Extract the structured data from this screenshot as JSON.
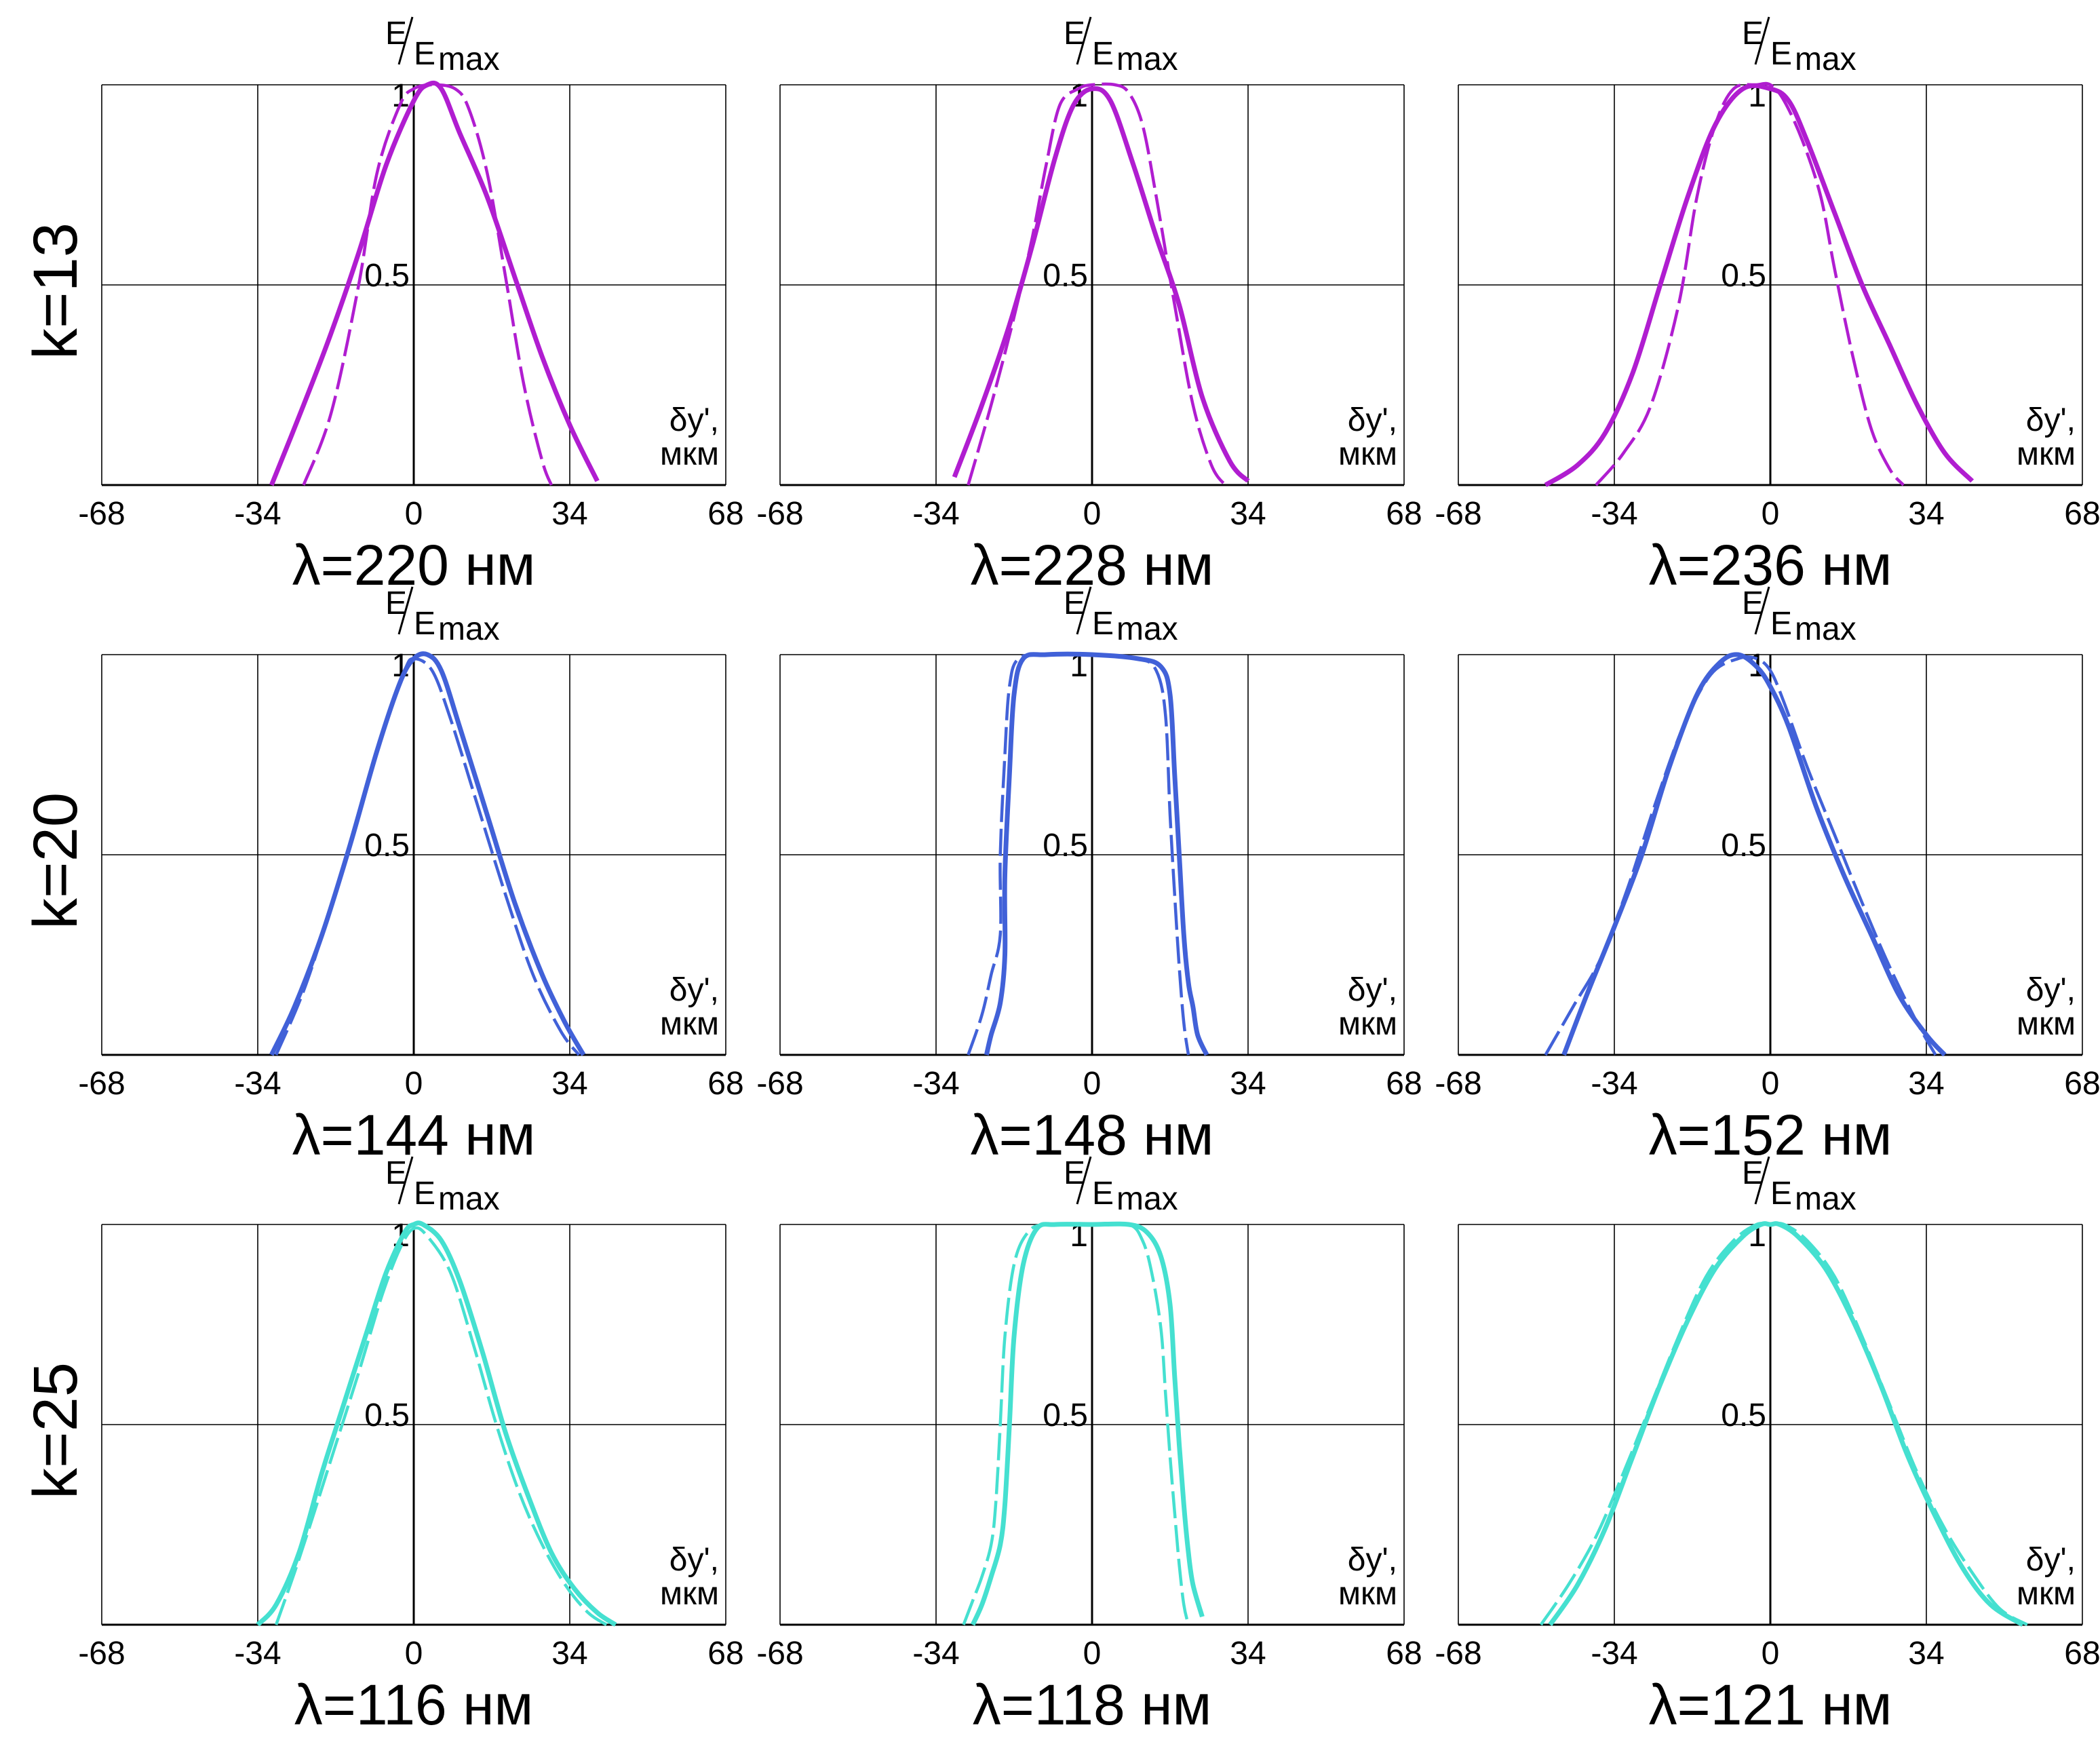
{
  "row_labels": [
    "k=13",
    "k=20",
    "k=25"
  ],
  "axis_text": {
    "y_label_num": "E",
    "y_label_den": "E",
    "y_label_sub": "max",
    "x_label_line1": "δy',",
    "x_label_line2": "мкм"
  },
  "colors": {
    "k13": "#b01dd0",
    "k20": "#4161d8",
    "k25": "#45e0d0",
    "grid": "#000000"
  },
  "chart_data": [
    {
      "type": "line",
      "row": "k=13",
      "title": "λ=220 нм",
      "xlim": [
        -68,
        68
      ],
      "ylim": [
        0,
        1
      ],
      "xticks": [
        "-68",
        "-34",
        "0",
        "34",
        "68"
      ],
      "yticks": [
        "0.5",
        "1"
      ],
      "xlabel": "δy', мкм",
      "ylabel": "E/E max",
      "series": [
        {
          "name": "solid",
          "style": "solid",
          "color": "#b01dd0",
          "x": [
            -31,
            -24,
            -18,
            -12,
            -6,
            0,
            3,
            6,
            10,
            16,
            22,
            28,
            34,
            40
          ],
          "y": [
            0,
            0.2,
            0.38,
            0.58,
            0.8,
            0.96,
            1.0,
            0.99,
            0.88,
            0.72,
            0.52,
            0.32,
            0.15,
            0.01
          ]
        },
        {
          "name": "dashed",
          "style": "dashed",
          "color": "#b01dd0",
          "x": [
            -24,
            -18,
            -12,
            -8,
            -3,
            0,
            4,
            9,
            12,
            16,
            20,
            24,
            28,
            30
          ],
          "y": [
            0,
            0.18,
            0.5,
            0.78,
            0.95,
            0.99,
            1.0,
            0.99,
            0.94,
            0.78,
            0.52,
            0.25,
            0.06,
            0
          ]
        }
      ]
    },
    {
      "type": "line",
      "row": "k=13",
      "title": "λ=228 нм",
      "xlim": [
        -68,
        68
      ],
      "ylim": [
        0,
        1
      ],
      "xticks": [
        "-68",
        "-34",
        "0",
        "34",
        "68"
      ],
      "yticks": [
        "0.5",
        "1"
      ],
      "xlabel": "δy', мкм",
      "ylabel": "E/E max",
      "series": [
        {
          "name": "solid",
          "style": "solid",
          "color": "#b01dd0",
          "x": [
            -30,
            -24,
            -18,
            -13,
            -8,
            -4,
            0,
            4,
            9,
            14,
            19,
            24,
            30,
            34
          ],
          "y": [
            0.02,
            0.2,
            0.4,
            0.6,
            0.82,
            0.95,
            0.99,
            0.96,
            0.8,
            0.62,
            0.45,
            0.22,
            0.06,
            0.01
          ]
        },
        {
          "name": "dashed",
          "style": "dashed",
          "color": "#b01dd0",
          "x": [
            -27,
            -22,
            -17,
            -13,
            -10,
            -7,
            -3,
            0,
            5,
            8,
            11,
            14,
            18,
            22,
            26,
            29
          ],
          "y": [
            0,
            0.2,
            0.42,
            0.62,
            0.8,
            0.95,
            0.99,
            1.0,
            1.0,
            0.98,
            0.9,
            0.72,
            0.45,
            0.2,
            0.05,
            0
          ]
        }
      ]
    },
    {
      "type": "line",
      "row": "k=13",
      "title": "λ=236 нм",
      "xlim": [
        -68,
        68
      ],
      "ylim": [
        0,
        1
      ],
      "xticks": [
        "-68",
        "-34",
        "0",
        "34",
        "68"
      ],
      "yticks": [
        "0.5",
        "1"
      ],
      "xlabel": "δy', мкм",
      "ylabel": "E/E max",
      "series": [
        {
          "name": "solid",
          "style": "solid",
          "color": "#b01dd0",
          "x": [
            -49,
            -42,
            -36,
            -30,
            -24,
            -18,
            -12,
            -6,
            0,
            4,
            8,
            14,
            20,
            26,
            32,
            38,
            44
          ],
          "y": [
            0,
            0.05,
            0.13,
            0.28,
            0.5,
            0.72,
            0.9,
            0.99,
            0.99,
            0.96,
            0.86,
            0.68,
            0.5,
            0.35,
            0.2,
            0.08,
            0.01
          ]
        },
        {
          "name": "dashed",
          "style": "dashed",
          "color": "#b01dd0",
          "x": [
            -38,
            -32,
            -26,
            -20,
            -16,
            -12,
            -8,
            -3,
            0,
            3,
            7,
            11,
            14,
            18,
            22,
            26,
            29
          ],
          "y": [
            0,
            0.08,
            0.2,
            0.45,
            0.72,
            0.9,
            0.99,
            1.0,
            1.0,
            0.96,
            0.86,
            0.72,
            0.54,
            0.32,
            0.14,
            0.04,
            0
          ]
        }
      ]
    },
    {
      "type": "line",
      "row": "k=20",
      "title": "λ=144 нм",
      "xlim": [
        -68,
        68
      ],
      "ylim": [
        0,
        1
      ],
      "xticks": [
        "-68",
        "-34",
        "0",
        "34",
        "68"
      ],
      "yticks": [
        "0.5",
        "1"
      ],
      "xlabel": "δy', мкм",
      "ylabel": "E/E max",
      "series": [
        {
          "name": "solid",
          "style": "solid",
          "color": "#4161d8",
          "x": [
            -31,
            -26,
            -20,
            -14,
            -8,
            -3,
            0,
            3,
            6,
            10,
            16,
            22,
            28,
            33,
            37
          ],
          "y": [
            0,
            0.12,
            0.3,
            0.52,
            0.76,
            0.93,
            0.99,
            1.0,
            0.96,
            0.82,
            0.6,
            0.38,
            0.2,
            0.08,
            0
          ]
        },
        {
          "name": "dashed",
          "style": "dashed",
          "color": "#4161d8",
          "x": [
            -30,
            -24,
            -18,
            -12,
            -6,
            -2,
            0,
            4,
            8,
            14,
            20,
            26,
            32,
            36
          ],
          "y": [
            0,
            0.16,
            0.37,
            0.6,
            0.83,
            0.96,
            0.99,
            0.96,
            0.84,
            0.62,
            0.4,
            0.2,
            0.06,
            0
          ]
        }
      ]
    },
    {
      "type": "line",
      "row": "k=20",
      "title": "λ=148 нм",
      "xlim": [
        -68,
        68
      ],
      "ylim": [
        0,
        1
      ],
      "xticks": [
        "-68",
        "-34",
        "0",
        "34",
        "68"
      ],
      "yticks": [
        "0.5",
        "1"
      ],
      "xlabel": "δy', мкм",
      "ylabel": "E/E max",
      "series": [
        {
          "name": "solid",
          "style": "solid",
          "color": "#4161d8",
          "x": [
            -23,
            -22,
            -20,
            -19,
            -19,
            -18,
            -17,
            -15,
            -10,
            0,
            10,
            15,
            17,
            18,
            19,
            20,
            21,
            22,
            23,
            25
          ],
          "y": [
            0,
            0.05,
            0.13,
            0.25,
            0.45,
            0.7,
            0.9,
            0.99,
            1.0,
            1.0,
            0.99,
            0.97,
            0.9,
            0.7,
            0.5,
            0.3,
            0.18,
            0.12,
            0.05,
            0
          ]
        },
        {
          "name": "dashed",
          "style": "dashed",
          "color": "#4161d8",
          "x": [
            -27,
            -24,
            -22,
            -20,
            -20,
            -19,
            -18,
            -16,
            -10,
            0,
            10,
            14,
            16,
            17,
            18,
            19,
            20,
            21
          ],
          "y": [
            0,
            0.1,
            0.2,
            0.3,
            0.5,
            0.75,
            0.92,
            0.99,
            1.0,
            1.0,
            0.99,
            0.96,
            0.85,
            0.6,
            0.4,
            0.22,
            0.08,
            0
          ]
        }
      ]
    },
    {
      "type": "line",
      "row": "k=20",
      "title": "λ=152 нм",
      "xlim": [
        -68,
        68
      ],
      "ylim": [
        0,
        1
      ],
      "xticks": [
        "-68",
        "-34",
        "0",
        "34",
        "68"
      ],
      "yticks": [
        "0.5",
        "1"
      ],
      "xlabel": "δy', мкм",
      "ylabel": "E/E max",
      "series": [
        {
          "name": "solid",
          "style": "solid",
          "color": "#4161d8",
          "x": [
            -45,
            -40,
            -34,
            -28,
            -22,
            -16,
            -11,
            -7,
            -3,
            0,
            4,
            10,
            16,
            22,
            28,
            34,
            38
          ],
          "y": [
            0,
            0.15,
            0.32,
            0.5,
            0.72,
            0.9,
            0.98,
            1.0,
            0.97,
            0.92,
            0.82,
            0.62,
            0.45,
            0.3,
            0.15,
            0.05,
            0
          ]
        },
        {
          "name": "dashed",
          "style": "dashed",
          "color": "#4161d8",
          "x": [
            -49,
            -43,
            -37,
            -31,
            -25,
            -19,
            -13,
            -7,
            -3,
            0,
            3,
            8,
            14,
            20,
            26,
            32,
            36
          ],
          "y": [
            0,
            0.12,
            0.24,
            0.42,
            0.63,
            0.82,
            0.95,
            0.99,
            0.99,
            0.96,
            0.88,
            0.72,
            0.55,
            0.38,
            0.22,
            0.08,
            0
          ]
        }
      ]
    },
    {
      "type": "line",
      "row": "k=25",
      "title": "λ=116 нм",
      "xlim": [
        -68,
        68
      ],
      "ylim": [
        0,
        1
      ],
      "xticks": [
        "-68",
        "-34",
        "0",
        "34",
        "68"
      ],
      "yticks": [
        "0.5",
        "1"
      ],
      "xlabel": "δy', мкм",
      "ylabel": "E/E max",
      "series": [
        {
          "name": "solid",
          "style": "solid",
          "color": "#45e0d0",
          "x": [
            -34,
            -30,
            -25,
            -20,
            -15,
            -10,
            -6,
            -2,
            0,
            2,
            6,
            10,
            15,
            20,
            25,
            30,
            35,
            40,
            44
          ],
          "y": [
            0,
            0.05,
            0.18,
            0.38,
            0.56,
            0.74,
            0.88,
            0.98,
            1.0,
            1.0,
            0.96,
            0.86,
            0.68,
            0.48,
            0.32,
            0.18,
            0.09,
            0.03,
            0
          ]
        },
        {
          "name": "dashed",
          "style": "dashed",
          "color": "#45e0d0",
          "x": [
            -30,
            -26,
            -22,
            -17,
            -12,
            -7,
            -3,
            0,
            3,
            8,
            13,
            18,
            23,
            28,
            33,
            38,
            42
          ],
          "y": [
            0,
            0.13,
            0.27,
            0.45,
            0.63,
            0.82,
            0.94,
            0.99,
            0.97,
            0.88,
            0.7,
            0.5,
            0.33,
            0.2,
            0.1,
            0.03,
            0
          ]
        }
      ]
    },
    {
      "type": "line",
      "row": "k=25",
      "title": "λ=118 нм",
      "xlim": [
        -68,
        68
      ],
      "ylim": [
        0,
        1
      ],
      "xticks": [
        "-68",
        "-34",
        "0",
        "34",
        "68"
      ],
      "yticks": [
        "0.5",
        "1"
      ],
      "xlabel": "δy', мкм",
      "ylabel": "E/E max",
      "series": [
        {
          "name": "solid",
          "style": "solid",
          "color": "#45e0d0",
          "x": [
            -26,
            -24,
            -22,
            -20,
            -19,
            -18,
            -17,
            -15,
            -12,
            -8,
            0,
            8,
            12,
            15,
            17,
            18,
            19,
            20,
            21,
            22,
            24
          ],
          "y": [
            0,
            0.05,
            0.12,
            0.2,
            0.3,
            0.5,
            0.72,
            0.9,
            0.99,
            1.0,
            1.0,
            1.0,
            0.98,
            0.92,
            0.8,
            0.62,
            0.45,
            0.3,
            0.18,
            0.1,
            0.02
          ]
        },
        {
          "name": "dashed",
          "style": "dashed",
          "color": "#45e0d0",
          "x": [
            -28,
            -26,
            -24,
            -22,
            -21,
            -20,
            -19,
            -17,
            -14,
            -10,
            0,
            8,
            11,
            13,
            15,
            16,
            17,
            18,
            19,
            20,
            21
          ],
          "y": [
            0,
            0.06,
            0.12,
            0.2,
            0.3,
            0.5,
            0.72,
            0.9,
            0.98,
            1.0,
            1.0,
            1.0,
            0.96,
            0.88,
            0.74,
            0.58,
            0.42,
            0.28,
            0.15,
            0.05,
            0
          ]
        }
      ]
    },
    {
      "type": "line",
      "row": "k=25",
      "title": "λ=121 нм",
      "xlim": [
        -68,
        68
      ],
      "ylim": [
        0,
        1
      ],
      "xticks": [
        "-68",
        "-34",
        "0",
        "34",
        "68"
      ],
      "yticks": [
        "0.5",
        "1"
      ],
      "xlabel": "δy', мкм",
      "ylabel": "E/E max",
      "series": [
        {
          "name": "solid",
          "style": "solid",
          "color": "#45e0d0",
          "x": [
            -48,
            -42,
            -36,
            -30,
            -24,
            -18,
            -12,
            -6,
            -2,
            0,
            2,
            6,
            12,
            18,
            24,
            30,
            36,
            42,
            48,
            55
          ],
          "y": [
            0,
            0.1,
            0.24,
            0.42,
            0.6,
            0.76,
            0.89,
            0.97,
            1.0,
            1.0,
            1.0,
            0.97,
            0.89,
            0.76,
            0.6,
            0.42,
            0.27,
            0.14,
            0.05,
            0
          ]
        },
        {
          "name": "dashed",
          "style": "dashed",
          "color": "#45e0d0",
          "x": [
            -50,
            -44,
            -38,
            -32,
            -26,
            -20,
            -14,
            -8,
            -3,
            0,
            3,
            8,
            14,
            20,
            26,
            32,
            38,
            44,
            50,
            56
          ],
          "y": [
            0,
            0.1,
            0.22,
            0.38,
            0.55,
            0.72,
            0.87,
            0.96,
            1.0,
            1.0,
            1.0,
            0.96,
            0.87,
            0.72,
            0.55,
            0.38,
            0.24,
            0.13,
            0.04,
            0
          ]
        }
      ]
    }
  ]
}
